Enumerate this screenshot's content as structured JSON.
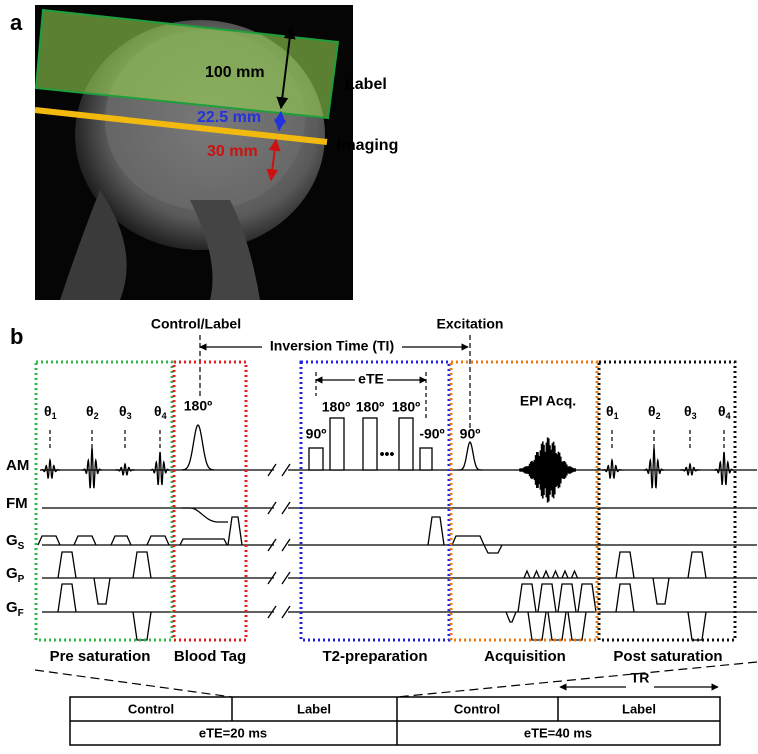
{
  "panel_a": {
    "label": "a",
    "dimensions": [
      "100 mm",
      "22.5 mm",
      "30 mm"
    ],
    "slab_labels": [
      "Label",
      "Imaging"
    ]
  },
  "panel_b": {
    "label": "b",
    "control_label": "Control/Label",
    "excitation": "Excitation",
    "inversion_time": "Inversion Time (TI)",
    "ete": "eTE",
    "blood_tag_pulse": "180º",
    "t2_pulses": [
      "90º",
      "180º",
      "180º",
      "•••",
      "180º",
      "-90º"
    ],
    "excitation_pulse": "90º",
    "epi": "EPI Acq.",
    "pre_flips": [
      {
        "base": "θ",
        "sub": "1"
      },
      {
        "base": "θ",
        "sub": "2"
      },
      {
        "base": "θ",
        "sub": "3"
      },
      {
        "base": "θ",
        "sub": "4"
      }
    ],
    "post_flips": [
      {
        "base": "θ",
        "sub": "1"
      },
      {
        "base": "θ",
        "sub": "2"
      },
      {
        "base": "θ",
        "sub": "3"
      },
      {
        "base": "θ",
        "sub": "4"
      }
    ],
    "rows": [
      "AM",
      "FM",
      {
        "base": "G",
        "sub": "S"
      },
      {
        "base": "G",
        "sub": "P"
      },
      {
        "base": "G",
        "sub": "F"
      }
    ],
    "sections": [
      "Pre saturation",
      "Blood Tag",
      "T2-preparation",
      "Acquisition",
      "Post saturation"
    ],
    "tr": "TR"
  },
  "table": {
    "rows": [
      [
        "Control",
        "Label",
        "Control",
        "Label"
      ],
      [
        "eTE=20 ms",
        "eTE=40 ms"
      ]
    ]
  }
}
